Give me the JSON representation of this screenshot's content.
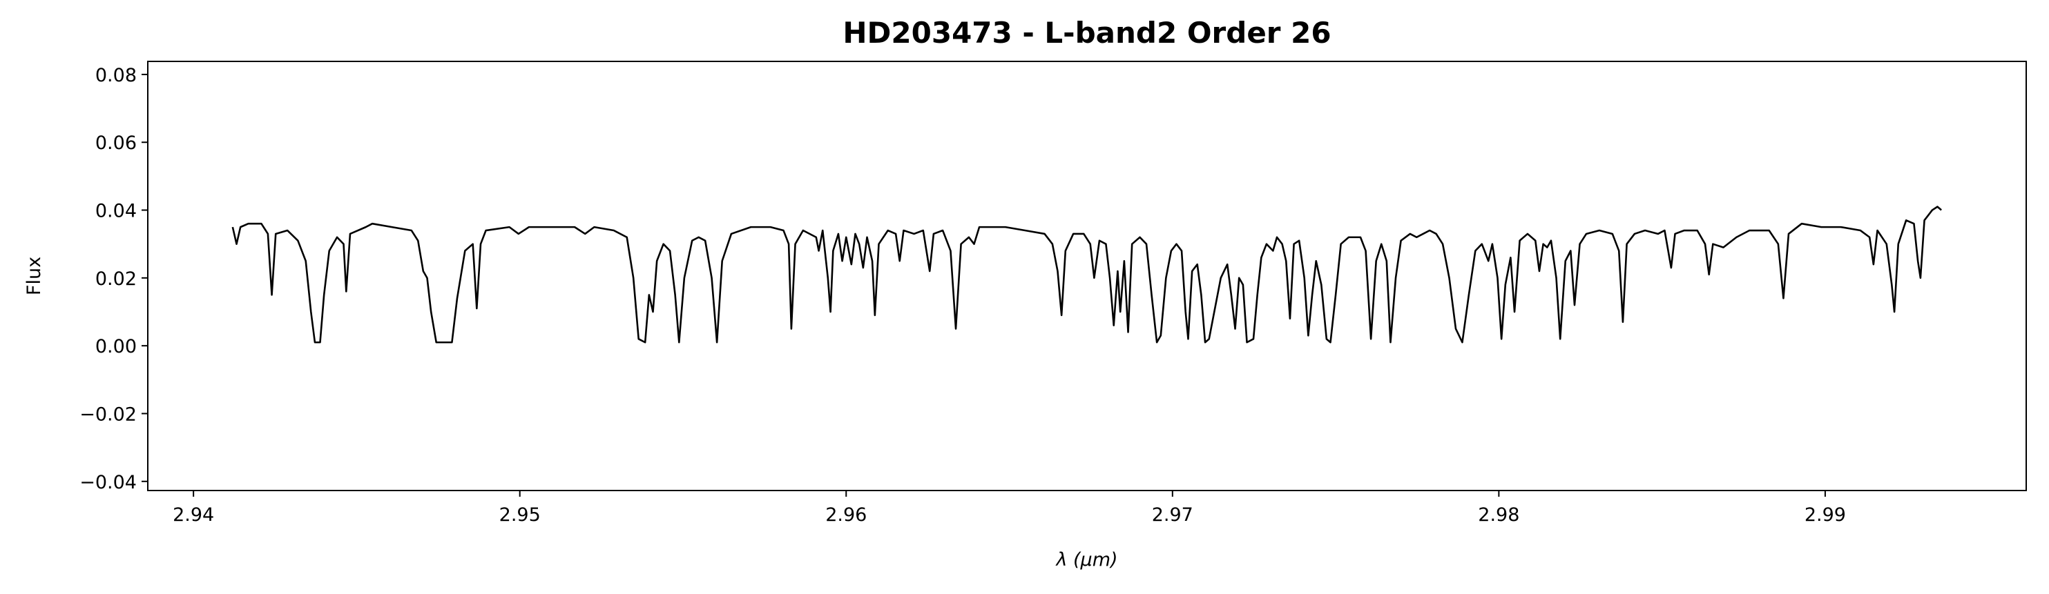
{
  "chart_data": {
    "type": "line",
    "title": "HD203473 - L-band2 Order 26",
    "xlabel": "λ (μm)",
    "ylabel": "Flux",
    "xlim": [
      2.9386,
      2.99616
    ],
    "ylim": [
      -0.04269,
      0.08385
    ],
    "xticks": [
      2.94,
      2.95,
      2.96,
      2.97,
      2.98,
      2.99
    ],
    "yticks": [
      {
        "value": -0.04,
        "label": "−0.04"
      },
      {
        "value": -0.02,
        "label": "−0.02"
      },
      {
        "value": 0,
        "label": "0.00"
      },
      0.02,
      0.04,
      0.06,
      0.08
    ],
    "series": [
      {
        "color": "#000000",
        "x": [
          2.9412,
          2.94132,
          2.94144,
          2.94168,
          2.94208,
          2.94228,
          2.9424,
          2.94252,
          2.94288,
          2.9432,
          2.94344,
          2.9436,
          2.94372,
          2.94388,
          2.944,
          2.94416,
          2.9444,
          2.9446,
          2.94468,
          2.9448,
          2.94528,
          2.94548,
          2.94608,
          2.94668,
          2.94688,
          2.94704,
          2.94716,
          2.94728,
          2.94744,
          2.94768,
          2.94792,
          2.94808,
          2.94832,
          2.94856,
          2.94868,
          2.9488,
          2.94896,
          2.94968,
          2.94996,
          2.95028,
          2.95088,
          2.95168,
          2.952,
          2.95228,
          2.95288,
          2.95328,
          2.95348,
          2.95364,
          2.95384,
          2.95396,
          2.95408,
          2.9542,
          2.9544,
          2.9546,
          2.95476,
          2.95488,
          2.95504,
          2.95528,
          2.95548,
          2.95568,
          2.95588,
          2.95604,
          2.9562,
          2.95648,
          2.95708,
          2.95768,
          2.95808,
          2.95824,
          2.95832,
          2.95844,
          2.95868,
          2.95908,
          2.95916,
          2.95928,
          2.95944,
          2.95952,
          2.9596,
          2.95976,
          2.95988,
          2.96,
          2.96016,
          2.96028,
          2.9604,
          2.96052,
          2.96064,
          2.9608,
          2.96088,
          2.961,
          2.96128,
          2.96152,
          2.96164,
          2.96176,
          2.96208,
          2.96236,
          2.96256,
          2.96268,
          2.96296,
          2.9632,
          2.96336,
          2.96352,
          2.96376,
          2.96392,
          2.96408,
          2.96488,
          2.96548,
          2.96608,
          2.96632,
          2.96648,
          2.9666,
          2.96672,
          2.96696,
          2.96728,
          2.96748,
          2.9676,
          2.96776,
          2.96796,
          2.96808,
          2.9682,
          2.96832,
          2.9684,
          2.96852,
          2.96864,
          2.96876,
          2.969,
          2.9692,
          2.96936,
          2.96952,
          2.96964,
          2.9698,
          2.96996,
          2.97012,
          2.97028,
          2.9704,
          2.97048,
          2.9706,
          2.97076,
          2.97088,
          2.971,
          2.97112,
          2.97128,
          2.97148,
          2.97168,
          2.9718,
          2.97192,
          2.97204,
          2.97216,
          2.97228,
          2.97248,
          2.9726,
          2.97272,
          2.97288,
          2.97308,
          2.9732,
          2.97336,
          2.97348,
          2.9736,
          2.97372,
          2.97388,
          2.97404,
          2.97416,
          2.97428,
          2.9744,
          2.97456,
          2.97472,
          2.97484,
          2.975,
          2.97516,
          2.9754,
          2.97576,
          2.97592,
          2.97608,
          2.97624,
          2.9764,
          2.97656,
          2.97668,
          2.97684,
          2.977,
          2.97728,
          2.97748,
          2.97768,
          2.97788,
          2.97808,
          2.97828,
          2.97848,
          2.97868,
          2.97888,
          2.97908,
          2.97928,
          2.97948,
          2.97968,
          2.9798,
          2.97996,
          2.98008,
          2.9802,
          2.98036,
          2.98048,
          2.98064,
          2.98088,
          2.98112,
          2.98124,
          2.98136,
          2.98148,
          2.9816,
          2.98176,
          2.98188,
          2.98204,
          2.9822,
          2.98232,
          2.98248,
          2.98268,
          2.98308,
          2.98348,
          2.98368,
          2.9838,
          2.98392,
          2.98416,
          2.98448,
          2.98488,
          2.98508,
          2.98528,
          2.9854,
          2.98568,
          2.98608,
          2.98632,
          2.98644,
          2.98656,
          2.98688,
          2.98728,
          2.98768,
          2.98828,
          2.98856,
          2.98872,
          2.98888,
          2.98928,
          2.98988,
          2.99048,
          2.99108,
          2.99136,
          2.99148,
          2.9916,
          2.99188,
          2.99204,
          2.99212,
          2.99224,
          2.99248,
          2.99272,
          2.99284,
          2.99292,
          2.99304,
          2.99328,
          2.99344,
          2.99356
        ],
        "values": [
          0.035,
          0.03,
          0.035,
          0.036,
          0.036,
          0.033,
          0.015,
          0.033,
          0.034,
          0.031,
          0.025,
          0.01,
          0.001,
          0.001,
          0.015,
          0.028,
          0.032,
          0.03,
          0.016,
          0.033,
          0.035,
          0.036,
          0.035,
          0.034,
          0.031,
          0.022,
          0.02,
          0.01,
          0.001,
          0.001,
          0.001,
          0.014,
          0.028,
          0.03,
          0.011,
          0.03,
          0.034,
          0.035,
          0.033,
          0.035,
          0.035,
          0.035,
          0.033,
          0.035,
          0.034,
          0.032,
          0.02,
          0.002,
          0.001,
          0.015,
          0.01,
          0.025,
          0.03,
          0.028,
          0.015,
          0.001,
          0.02,
          0.031,
          0.032,
          0.031,
          0.02,
          0.001,
          0.025,
          0.033,
          0.035,
          0.035,
          0.034,
          0.03,
          0.005,
          0.03,
          0.034,
          0.032,
          0.028,
          0.034,
          0.02,
          0.01,
          0.028,
          0.033,
          0.025,
          0.032,
          0.024,
          0.033,
          0.03,
          0.023,
          0.032,
          0.025,
          0.009,
          0.03,
          0.034,
          0.033,
          0.025,
          0.034,
          0.033,
          0.034,
          0.022,
          0.033,
          0.034,
          0.028,
          0.005,
          0.03,
          0.032,
          0.03,
          0.035,
          0.035,
          0.034,
          0.033,
          0.03,
          0.022,
          0.009,
          0.028,
          0.033,
          0.033,
          0.03,
          0.02,
          0.031,
          0.03,
          0.02,
          0.006,
          0.022,
          0.01,
          0.025,
          0.004,
          0.03,
          0.032,
          0.03,
          0.015,
          0.001,
          0.003,
          0.02,
          0.028,
          0.03,
          0.028,
          0.01,
          0.002,
          0.022,
          0.024,
          0.015,
          0.001,
          0.002,
          0.01,
          0.02,
          0.024,
          0.015,
          0.005,
          0.02,
          0.018,
          0.001,
          0.002,
          0.015,
          0.026,
          0.03,
          0.028,
          0.032,
          0.03,
          0.025,
          0.008,
          0.03,
          0.031,
          0.02,
          0.003,
          0.015,
          0.025,
          0.018,
          0.002,
          0.001,
          0.015,
          0.03,
          0.032,
          0.032,
          0.028,
          0.002,
          0.025,
          0.03,
          0.025,
          0.001,
          0.02,
          0.031,
          0.033,
          0.032,
          0.033,
          0.034,
          0.033,
          0.03,
          0.02,
          0.005,
          0.001,
          0.015,
          0.028,
          0.03,
          0.025,
          0.03,
          0.02,
          0.002,
          0.018,
          0.026,
          0.01,
          0.031,
          0.033,
          0.031,
          0.022,
          0.03,
          0.029,
          0.031,
          0.02,
          0.002,
          0.025,
          0.028,
          0.012,
          0.03,
          0.033,
          0.034,
          0.033,
          0.028,
          0.007,
          0.03,
          0.033,
          0.034,
          0.033,
          0.034,
          0.023,
          0.033,
          0.034,
          0.034,
          0.03,
          0.021,
          0.03,
          0.029,
          0.032,
          0.034,
          0.034,
          0.03,
          0.014,
          0.033,
          0.036,
          0.035,
          0.035,
          0.034,
          0.032,
          0.024,
          0.034,
          0.03,
          0.018,
          0.01,
          0.03,
          0.037,
          0.036,
          0.025,
          0.02,
          0.037,
          0.04,
          0.041,
          0.04
        ]
      }
    ]
  }
}
